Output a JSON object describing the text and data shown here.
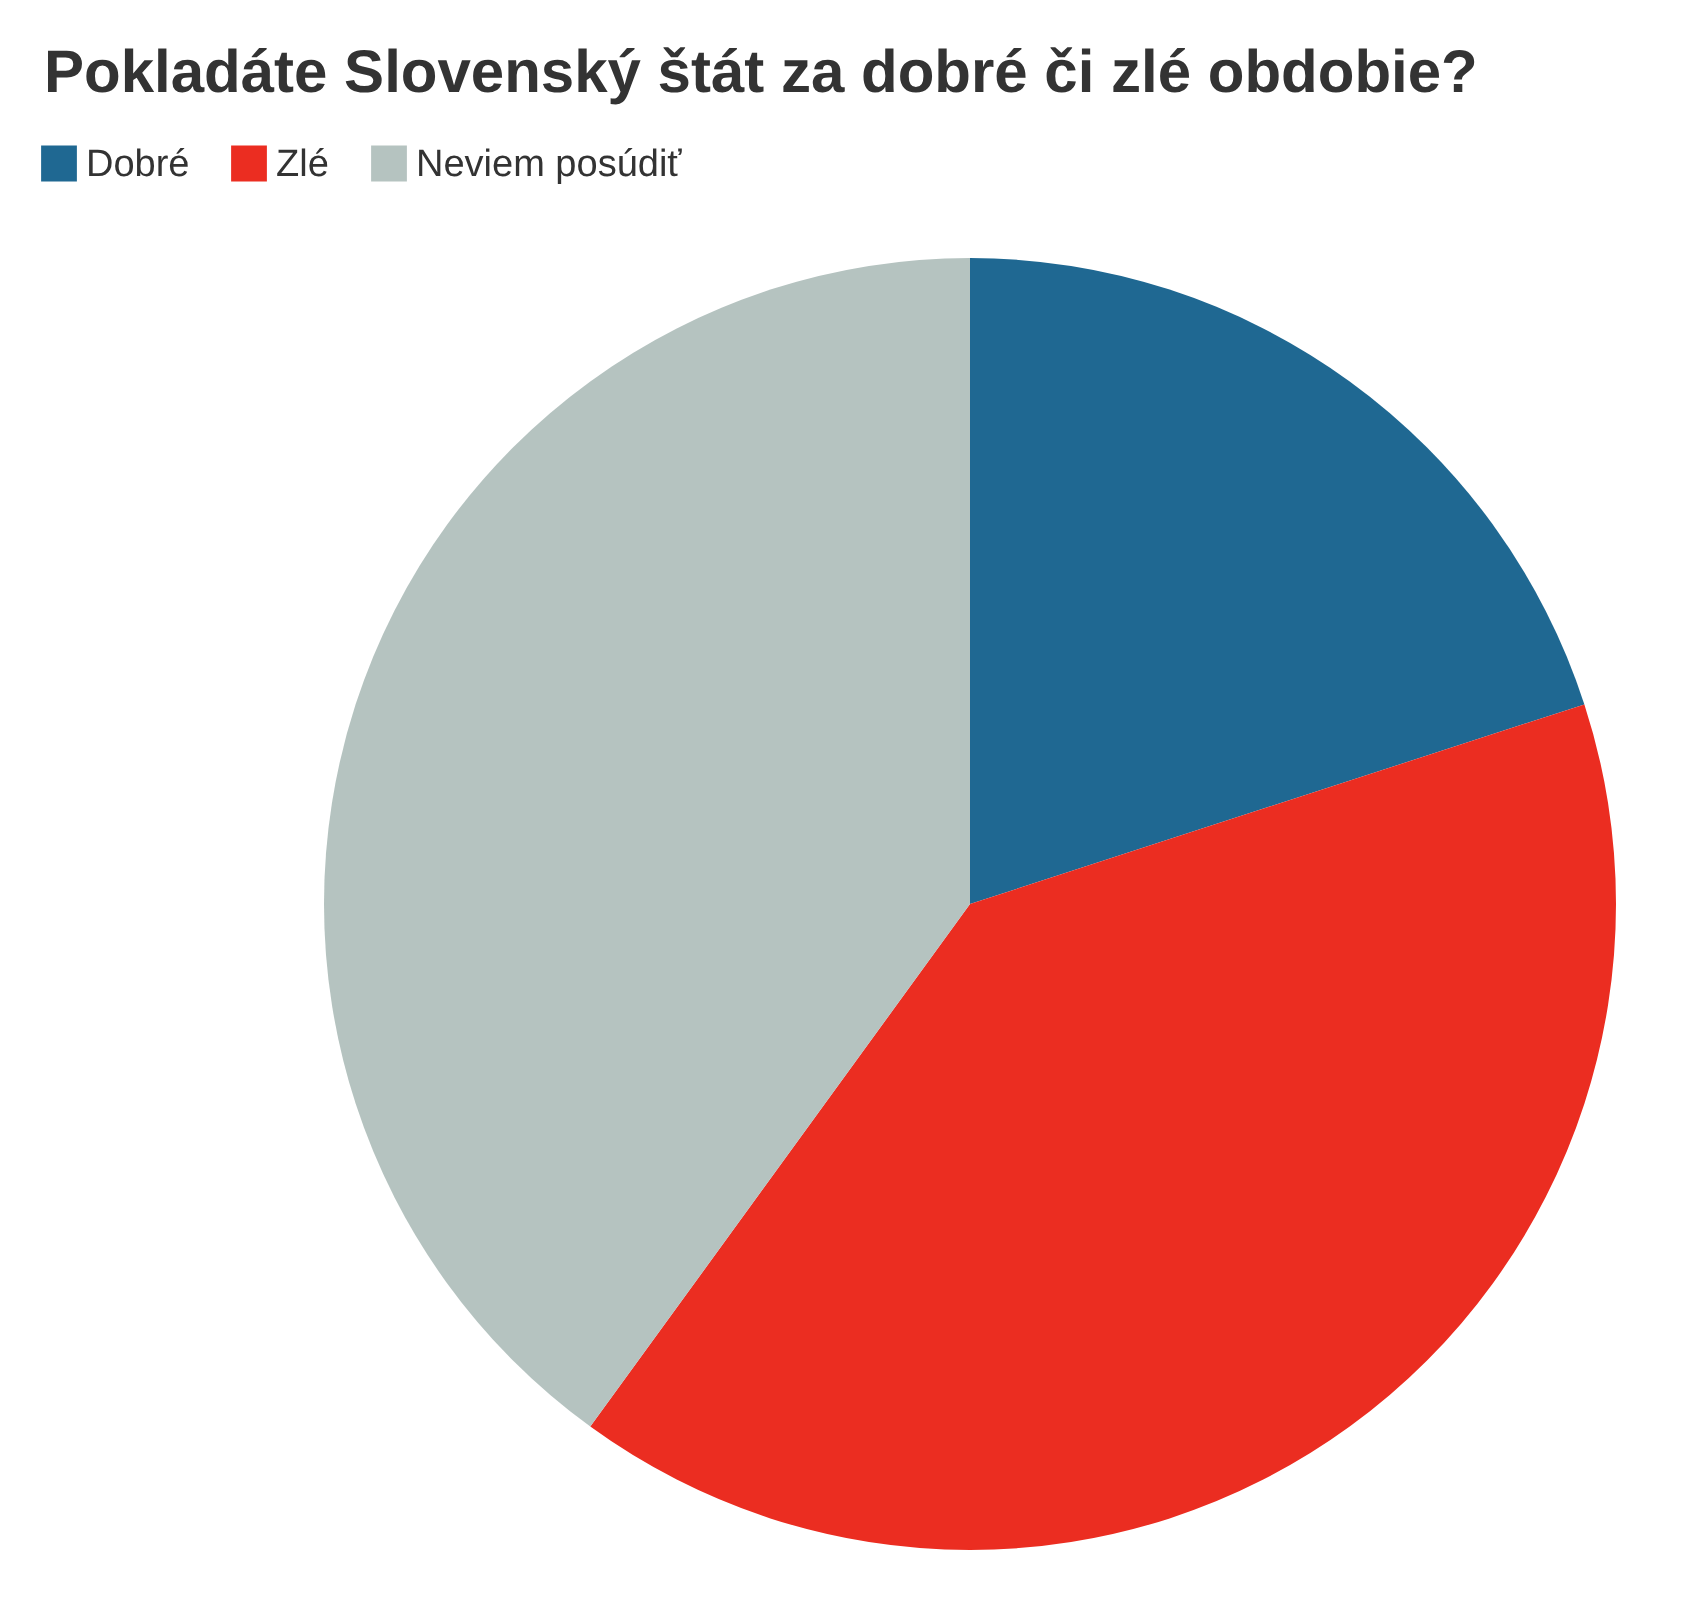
{
  "chart_data": {
    "type": "pie",
    "title": "Pokladáte Slovenský štát za dobré či zlé obdobie?",
    "categories": [
      "Dobré",
      "Zlé",
      "Neviem posúdiť"
    ],
    "values": [
      20,
      40,
      40
    ],
    "colors": [
      "#1f6892",
      "#eb2d21",
      "#b5c3c0"
    ],
    "legend": "top left"
  }
}
